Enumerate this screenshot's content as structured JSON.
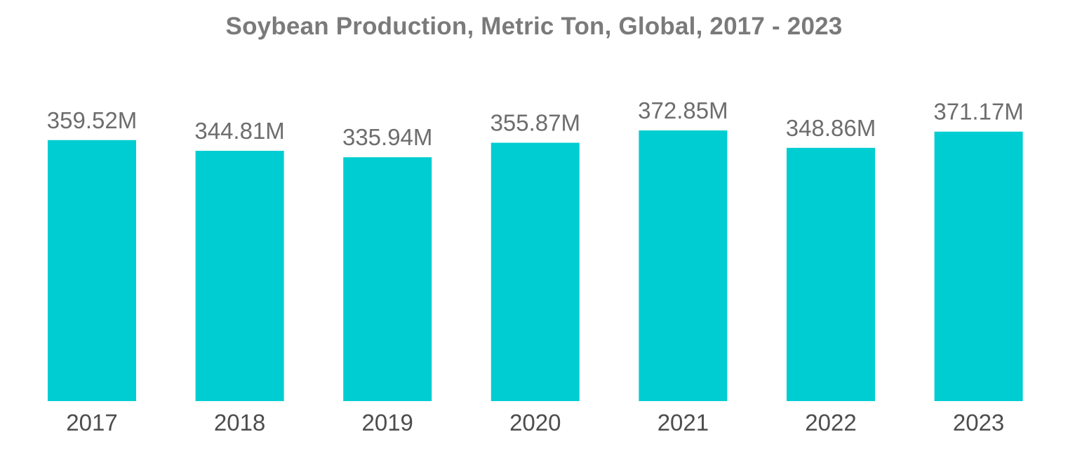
{
  "chart_data": {
    "type": "bar",
    "title": "Soybean Production, Metric Ton, Global, 2017 - 2023",
    "xlabel": "",
    "ylabel": "",
    "categories": [
      "2017",
      "2018",
      "2019",
      "2020",
      "2021",
      "2022",
      "2023"
    ],
    "values": [
      359.52,
      344.81,
      335.94,
      355.87,
      372.85,
      348.86,
      371.17
    ],
    "value_labels": [
      "359.52M",
      "344.81M",
      "335.94M",
      "355.87M",
      "372.85M",
      "348.86M",
      "371.17M"
    ],
    "unit": "M",
    "ylim": [
      0,
      372.85
    ],
    "grid": false,
    "legend": "none",
    "bar_color": "#00cdd1"
  }
}
